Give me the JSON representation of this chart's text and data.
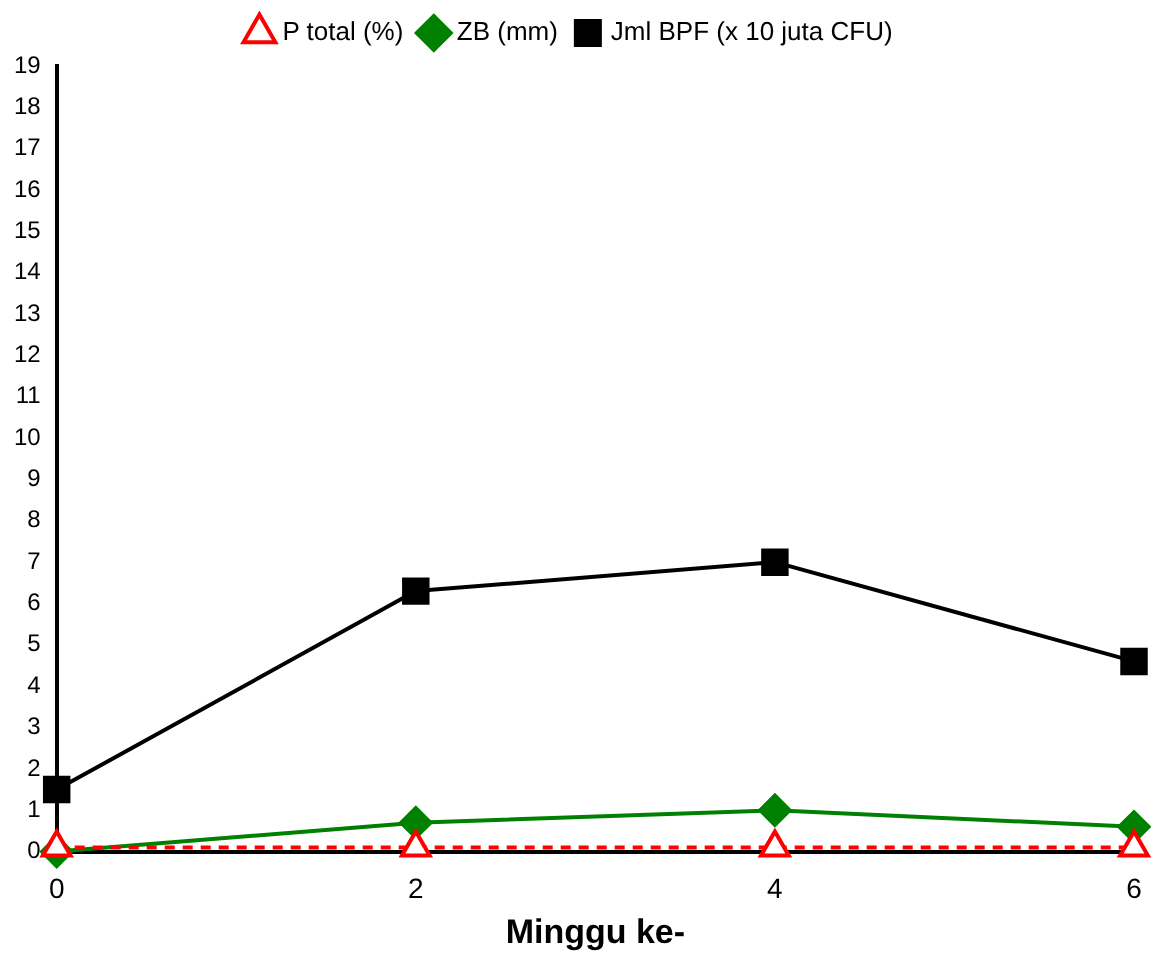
{
  "chart_data": {
    "type": "line",
    "xlabel": "Minggu ke-",
    "x": [
      0,
      2,
      4,
      6
    ],
    "xlim": [
      0,
      6
    ],
    "xticks": [
      0,
      2,
      4,
      6
    ],
    "ylim": [
      0,
      19
    ],
    "yticks": [
      0,
      1,
      2,
      3,
      4,
      5,
      6,
      7,
      8,
      9,
      10,
      11,
      12,
      13,
      14,
      15,
      16,
      17,
      18,
      19
    ],
    "grid": false,
    "legend": "top",
    "series": [
      {
        "name": "Jml BPF (x 10 juta CFU)",
        "color": "#000000",
        "marker": "square",
        "line_style": "solid",
        "values": [
          1.5,
          6.3,
          7.0,
          4.6
        ]
      },
      {
        "name": "ZB (mm)",
        "color": "#008000",
        "marker": "diamond",
        "line_style": "solid",
        "values": [
          0,
          0.7,
          1.0,
          0.6
        ]
      },
      {
        "name": "P total (%)",
        "color": "#ff0000",
        "marker": "triangle",
        "line_style": "dashed",
        "values": [
          0.1,
          0.1,
          0.1,
          0.1
        ]
      }
    ]
  }
}
